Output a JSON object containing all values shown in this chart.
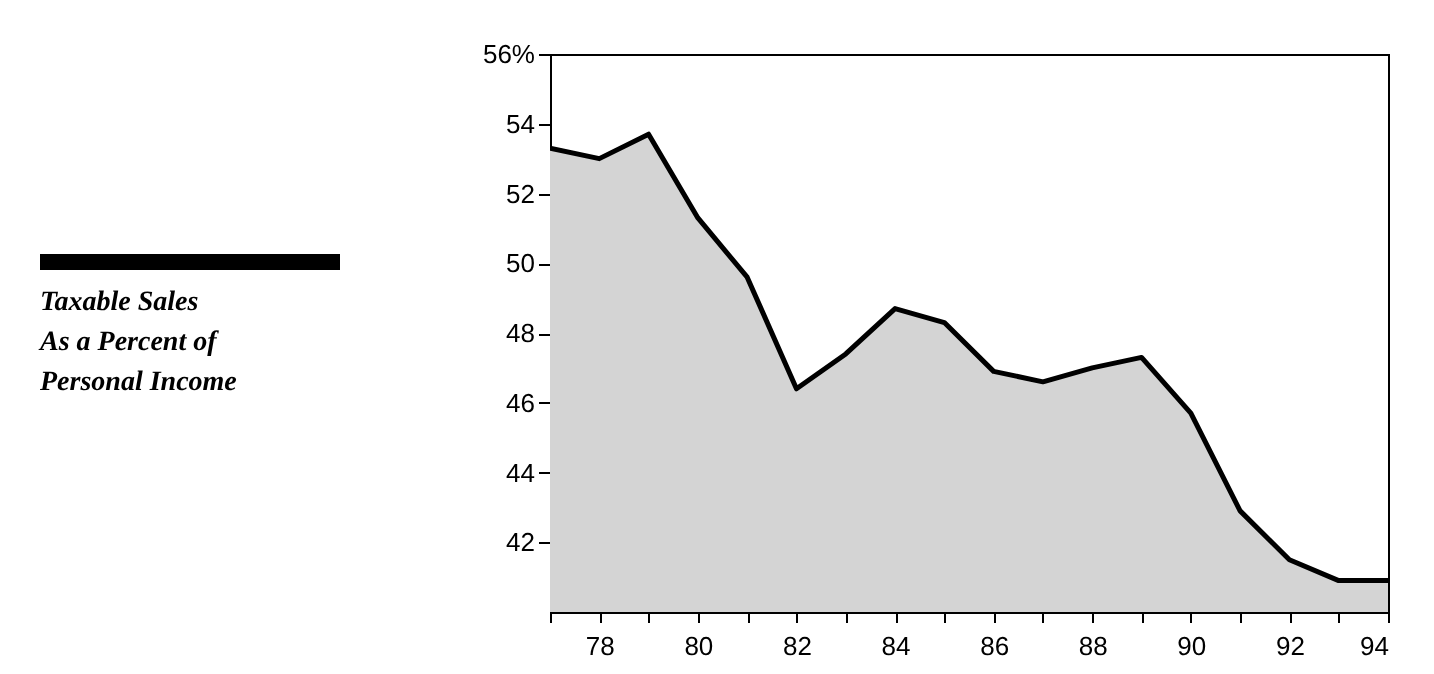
{
  "chart_data": {
    "type": "area",
    "x": [
      77,
      78,
      79,
      80,
      81,
      82,
      83,
      84,
      85,
      86,
      87,
      88,
      89,
      90,
      91,
      92,
      93,
      94
    ],
    "series": [
      {
        "name": "Taxable Sales As a Percent of Personal Income",
        "color": "#000000",
        "values": [
          53.3,
          53.0,
          53.7,
          51.3,
          49.6,
          46.4,
          47.4,
          48.7,
          48.3,
          46.9,
          46.6,
          47.0,
          47.3,
          45.7,
          42.9,
          41.5,
          40.9,
          40.9
        ]
      }
    ],
    "xlim": [
      77,
      94
    ],
    "xticks": [
      {
        "value": 77,
        "label": null
      },
      78,
      {
        "value": 79,
        "label": null
      },
      80,
      {
        "value": 81,
        "label": null
      },
      82,
      {
        "value": 83,
        "label": null
      },
      84,
      {
        "value": 85,
        "label": null
      },
      86,
      {
        "value": 87,
        "label": null
      },
      88,
      {
        "value": 89,
        "label": null
      },
      90,
      {
        "value": 91,
        "label": null
      },
      92,
      {
        "value": 93,
        "label": null
      },
      94
    ],
    "ylim": [
      40,
      56
    ],
    "yticks": [
      42,
      44,
      46,
      48,
      50,
      52,
      54,
      {
        "value": 56,
        "label": "56%"
      }
    ],
    "grid": false,
    "legend": "left"
  }
}
